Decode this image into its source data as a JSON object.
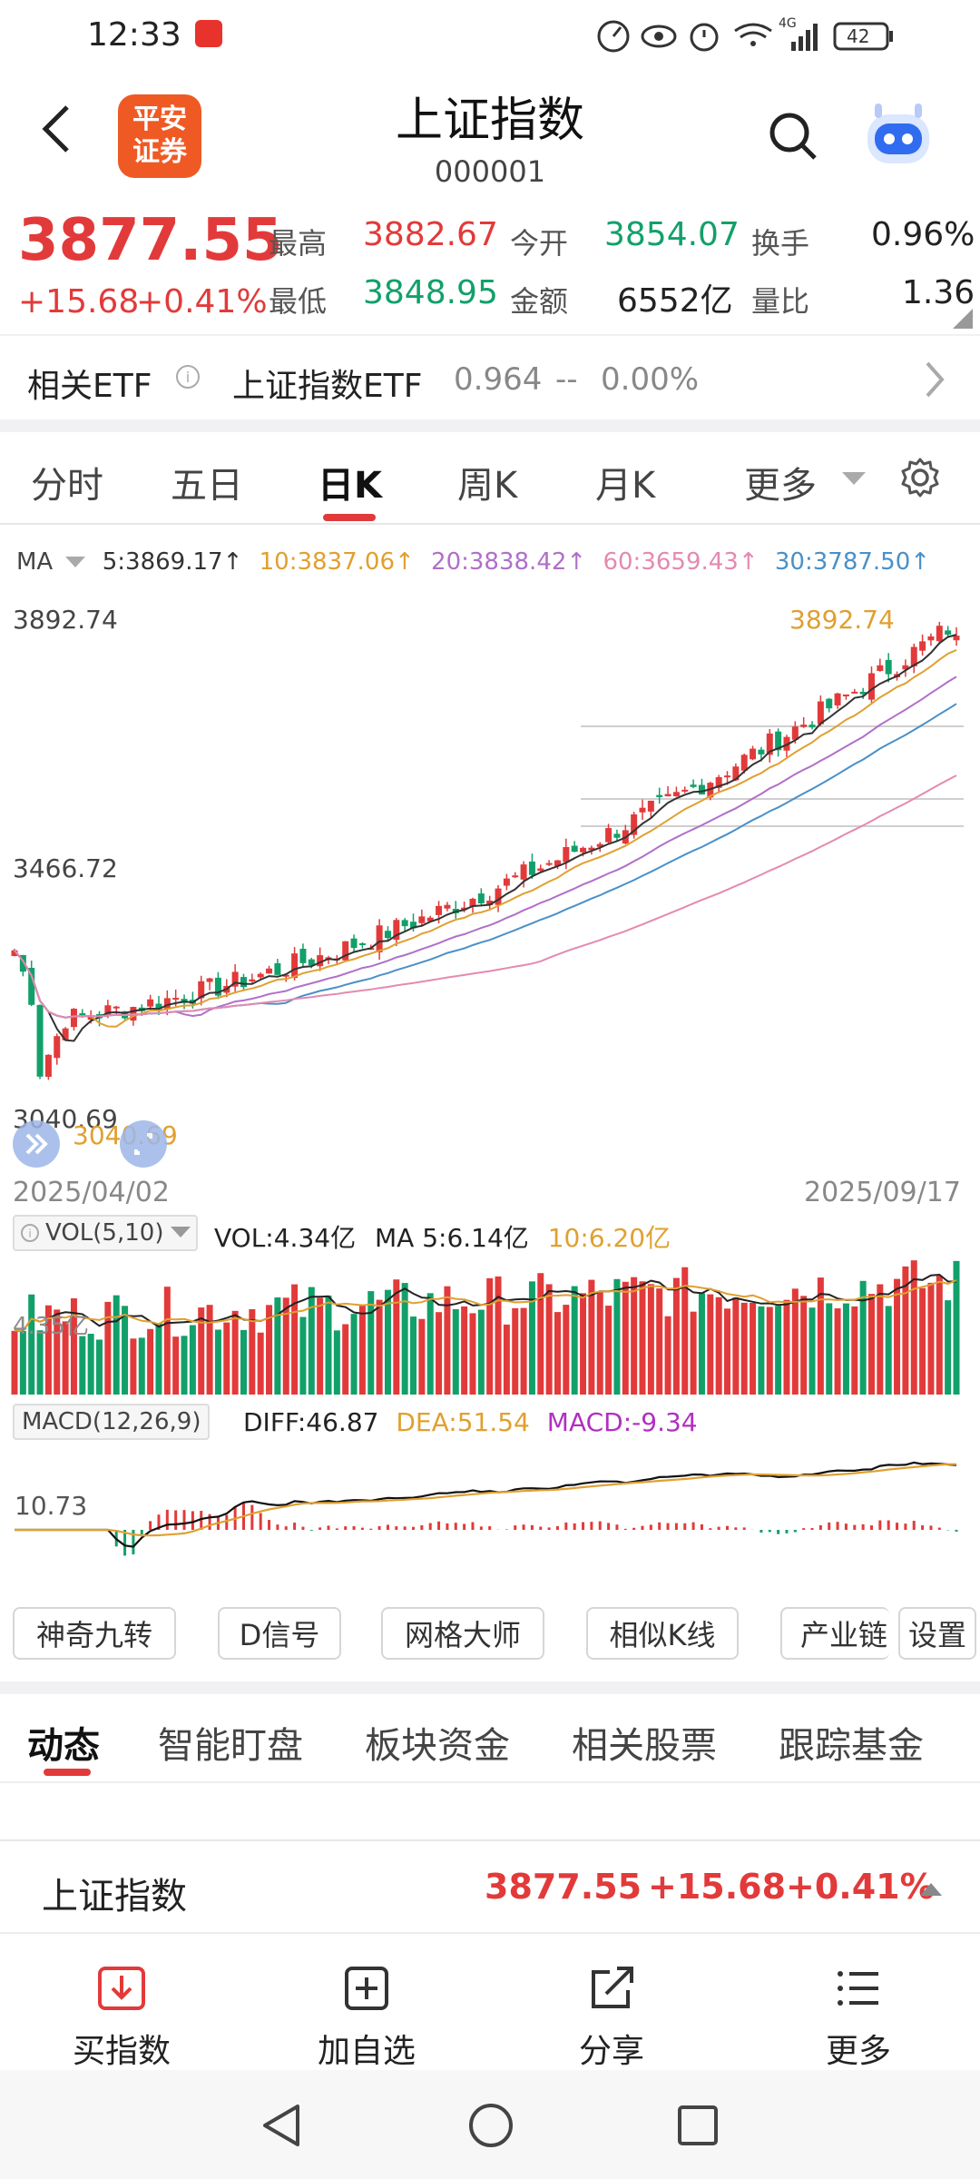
{
  "status": {
    "time": "12:33",
    "network": "4G",
    "battery": "42"
  },
  "header": {
    "title": "上证指数",
    "code": "000001",
    "logo_text": "平安\n证券"
  },
  "quote": {
    "price": "3877.55",
    "change": "+15.68",
    "change_pct": "+0.41%",
    "high_label": "最高",
    "high": "3882.67",
    "low_label": "最低",
    "low": "3848.95",
    "open_label": "今开",
    "open": "3854.07",
    "amount_label": "金额",
    "amount": "6552亿",
    "turnover_label": "换手",
    "turnover": "0.96%",
    "vol_ratio_label": "量比",
    "vol_ratio": "1.36"
  },
  "etf": {
    "label": "相关ETF",
    "name": "上证指数ETF",
    "price": "0.964",
    "dash": "--",
    "pct": "0.00%"
  },
  "period_tabs": [
    "分时",
    "五日",
    "日K",
    "周K",
    "月K",
    "更多"
  ],
  "active_period": "日K",
  "ma_bar": {
    "label": "MA",
    "items": [
      {
        "text": "5:3869.17↑",
        "color": "#333333"
      },
      {
        "text": "10:3837.06↑",
        "color": "#e0a030"
      },
      {
        "text": "20:3838.42↑",
        "color": "#b070c8"
      },
      {
        "text": "60:3659.43↑",
        "color": "#e48ab0"
      },
      {
        "text": "30:3787.50↑",
        "color": "#4a90c8"
      }
    ]
  },
  "kline": {
    "max_label": "3892.74",
    "mid_label": "3466.72",
    "min_label": "3040.69",
    "max_marker": "3892.74",
    "min_marker": "3040.69",
    "start_date": "2025/04/02",
    "end_date": "2025/09/17"
  },
  "vol_bar": {
    "label": "VOL(5,10)",
    "items": [
      {
        "text": "VOL:4.34亿",
        "color": "#222222"
      },
      {
        "text": "MA 5:6.14亿",
        "color": "#222222"
      },
      {
        "text": "10:6.20亿",
        "color": "#e0a030"
      }
    ],
    "axis_label": "4.35亿"
  },
  "macd_bar": {
    "label": "MACD(12,26,9)",
    "items": [
      {
        "text": "DIFF:46.87",
        "color": "#222222"
      },
      {
        "text": "DEA:51.54",
        "color": "#e0a030"
      },
      {
        "text": "MACD:-9.34",
        "color": "#b030c0"
      }
    ],
    "axis_label": "10.73"
  },
  "tools": [
    "神奇九转",
    "D信号",
    "网格大师",
    "相似K线",
    "产业链",
    "设置"
  ],
  "content_tabs": [
    "动态",
    "智能盯盘",
    "板块资金",
    "相关股票",
    "跟踪基金"
  ],
  "footer_quote": {
    "name": "上证指数",
    "price": "3877.55",
    "change": "+15.68",
    "pct": "+0.41%"
  },
  "bottom_nav": [
    {
      "label": "买指数",
      "icon": "buy-index-icon"
    },
    {
      "label": "加自选",
      "icon": "add-watchlist-icon"
    },
    {
      "label": "分享",
      "icon": "share-icon"
    },
    {
      "label": "更多",
      "icon": "more-list-icon"
    }
  ],
  "colors": {
    "up": "#e23a3a",
    "down": "#12a06a",
    "accent": "#e8332c"
  }
}
